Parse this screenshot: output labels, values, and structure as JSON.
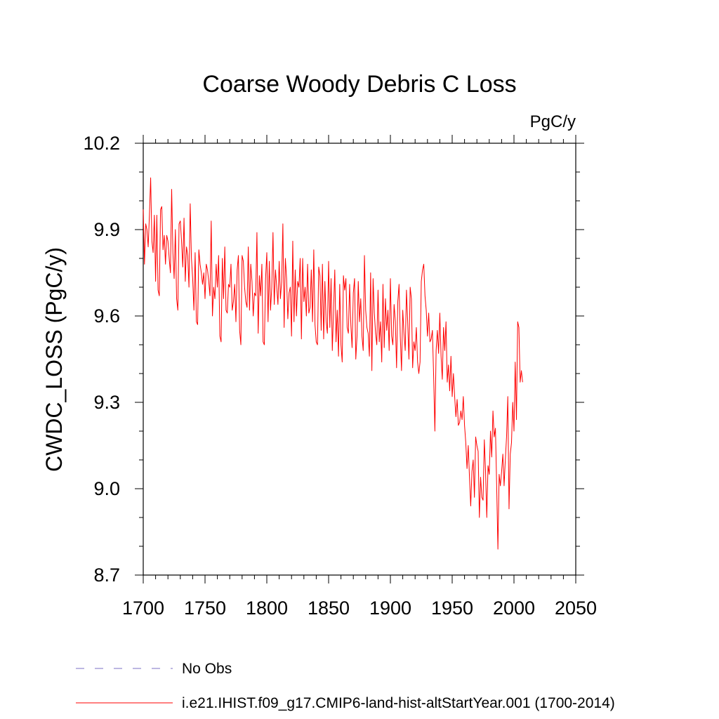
{
  "chart_data": {
    "type": "line",
    "title": "Coarse Woody Debris C Loss",
    "units": "PgC/y",
    "ylabel": "CWDC_LOSS  (PgC/y)",
    "xlabel": "",
    "xlim": [
      1700,
      2050
    ],
    "ylim": [
      8.7,
      10.2
    ],
    "xticks": [
      1700,
      1750,
      1800,
      1850,
      1900,
      1950,
      2000,
      2050
    ],
    "xtick_labels": [
      "1700",
      "1750",
      "1800",
      "1850",
      "1900",
      "1950",
      "2000",
      "2050"
    ],
    "yticks": [
      8.7,
      9.0,
      9.3,
      9.6,
      9.9,
      10.2
    ],
    "ytick_labels": [
      "8.7",
      "9.0",
      "9.3",
      "9.6",
      "9.9",
      "10.2"
    ],
    "grid": false,
    "legend_position": "bottom",
    "legend": [
      {
        "label": "No Obs",
        "color": "#7b6fc4",
        "style": "dashed"
      },
      {
        "label": "i.e21.IHIST.f09_g17.CMIP6-land-hist-altStartYear.001 (1700-2014)",
        "color": "#ff0000",
        "style": "solid"
      }
    ],
    "series": [
      {
        "name": "i.e21.IHIST.f09_g17.CMIP6-land-hist-altStartYear.001 (1700-2014)",
        "color": "#ff0000",
        "x_start": 1700,
        "x_step": 1,
        "values": [
          9.97,
          9.78,
          9.92,
          9.9,
          9.84,
          9.95,
          10.08,
          9.86,
          9.82,
          9.95,
          9.72,
          9.95,
          9.69,
          9.67,
          9.97,
          9.98,
          9.83,
          9.88,
          9.78,
          9.88,
          9.86,
          9.8,
          9.75,
          10.04,
          9.82,
          9.73,
          9.9,
          9.66,
          9.62,
          9.92,
          9.93,
          9.86,
          9.77,
          9.94,
          9.72,
          9.84,
          9.81,
          9.7,
          9.99,
          9.8,
          9.73,
          9.62,
          9.82,
          9.58,
          9.57,
          9.83,
          9.78,
          9.75,
          9.71,
          9.75,
          9.66,
          9.78,
          9.76,
          9.72,
          9.67,
          9.93,
          9.6,
          9.7,
          9.66,
          9.78,
          9.7,
          9.81,
          9.53,
          9.51,
          9.8,
          9.66,
          9.84,
          9.62,
          9.61,
          9.71,
          9.7,
          9.78,
          9.62,
          9.65,
          9.71,
          9.58,
          9.76,
          9.81,
          9.55,
          9.5,
          9.81,
          9.79,
          9.7,
          9.65,
          9.63,
          9.84,
          9.62,
          9.78,
          9.72,
          9.6,
          9.68,
          9.67,
          9.89,
          9.54,
          9.74,
          9.67,
          9.78,
          9.51,
          9.5,
          9.73,
          9.82,
          9.58,
          9.79,
          9.62,
          9.7,
          9.89,
          9.64,
          9.76,
          9.7,
          9.64,
          9.79,
          9.66,
          9.72,
          9.92,
          9.56,
          9.8,
          9.73,
          9.59,
          9.68,
          9.7,
          9.53,
          9.86,
          9.58,
          9.76,
          9.6,
          9.72,
          9.7,
          9.8,
          9.52,
          9.8,
          9.65,
          9.7,
          9.6,
          9.78,
          9.61,
          9.63,
          9.76,
          9.58,
          9.83,
          9.57,
          9.51,
          9.5,
          9.77,
          9.74,
          9.55,
          9.78,
          9.52,
          9.72,
          9.58,
          9.54,
          9.79,
          9.56,
          9.73,
          9.48,
          9.62,
          9.76,
          9.51,
          9.62,
          9.46,
          9.71,
          9.5,
          9.44,
          9.74,
          9.69,
          9.73,
          9.56,
          9.54,
          9.71,
          9.57,
          9.49,
          9.68,
          9.73,
          9.45,
          9.53,
          9.72,
          9.58,
          9.66,
          9.53,
          9.48,
          9.81,
          9.62,
          9.56,
          9.54,
          9.46,
          9.75,
          9.41,
          9.73,
          9.61,
          9.54,
          9.5,
          9.69,
          9.51,
          9.58,
          9.44,
          9.71,
          9.49,
          9.66,
          9.55,
          9.62,
          9.48,
          9.73,
          9.53,
          9.5,
          9.64,
          9.58,
          9.42,
          9.65,
          9.71,
          9.53,
          9.41,
          9.62,
          9.54,
          9.48,
          9.69,
          9.58,
          9.45,
          9.7,
          9.66,
          9.42,
          9.51,
          9.48,
          9.56,
          9.44,
          9.4,
          9.44,
          9.72,
          9.76,
          9.78,
          9.67,
          9.62,
          9.53,
          9.61,
          9.51,
          9.52,
          9.55,
          9.39,
          9.2,
          9.48,
          9.55,
          9.47,
          9.61,
          9.46,
          9.38,
          9.56,
          9.48,
          9.58,
          9.37,
          9.43,
          9.34,
          9.46,
          9.32,
          9.4,
          9.32,
          9.25,
          9.31,
          9.22,
          9.23,
          9.27,
          9.24,
          9.32,
          9.22,
          9.16,
          9.07,
          9.15,
          9.04,
          8.94,
          9.06,
          9.1,
          8.97,
          9.18,
          9.15,
          9.13,
          8.9,
          9.04,
          8.97,
          8.96,
          9.17,
          9.06,
          8.9,
          9.08,
          9.05,
          9.2,
          9.11,
          9.27,
          9.18,
          9.21,
          9.01,
          8.79,
          9.05,
          9.01,
          9.06,
          9.12,
          9.01,
          9.1,
          9.18,
          9.32,
          8.93,
          9.12,
          9.16,
          9.3,
          9.2,
          9.44,
          9.24,
          9.58,
          9.56,
          9.37,
          9.41,
          9.37
        ]
      },
      {
        "name": "No Obs",
        "color": "#7b6fc4",
        "values": []
      }
    ]
  }
}
